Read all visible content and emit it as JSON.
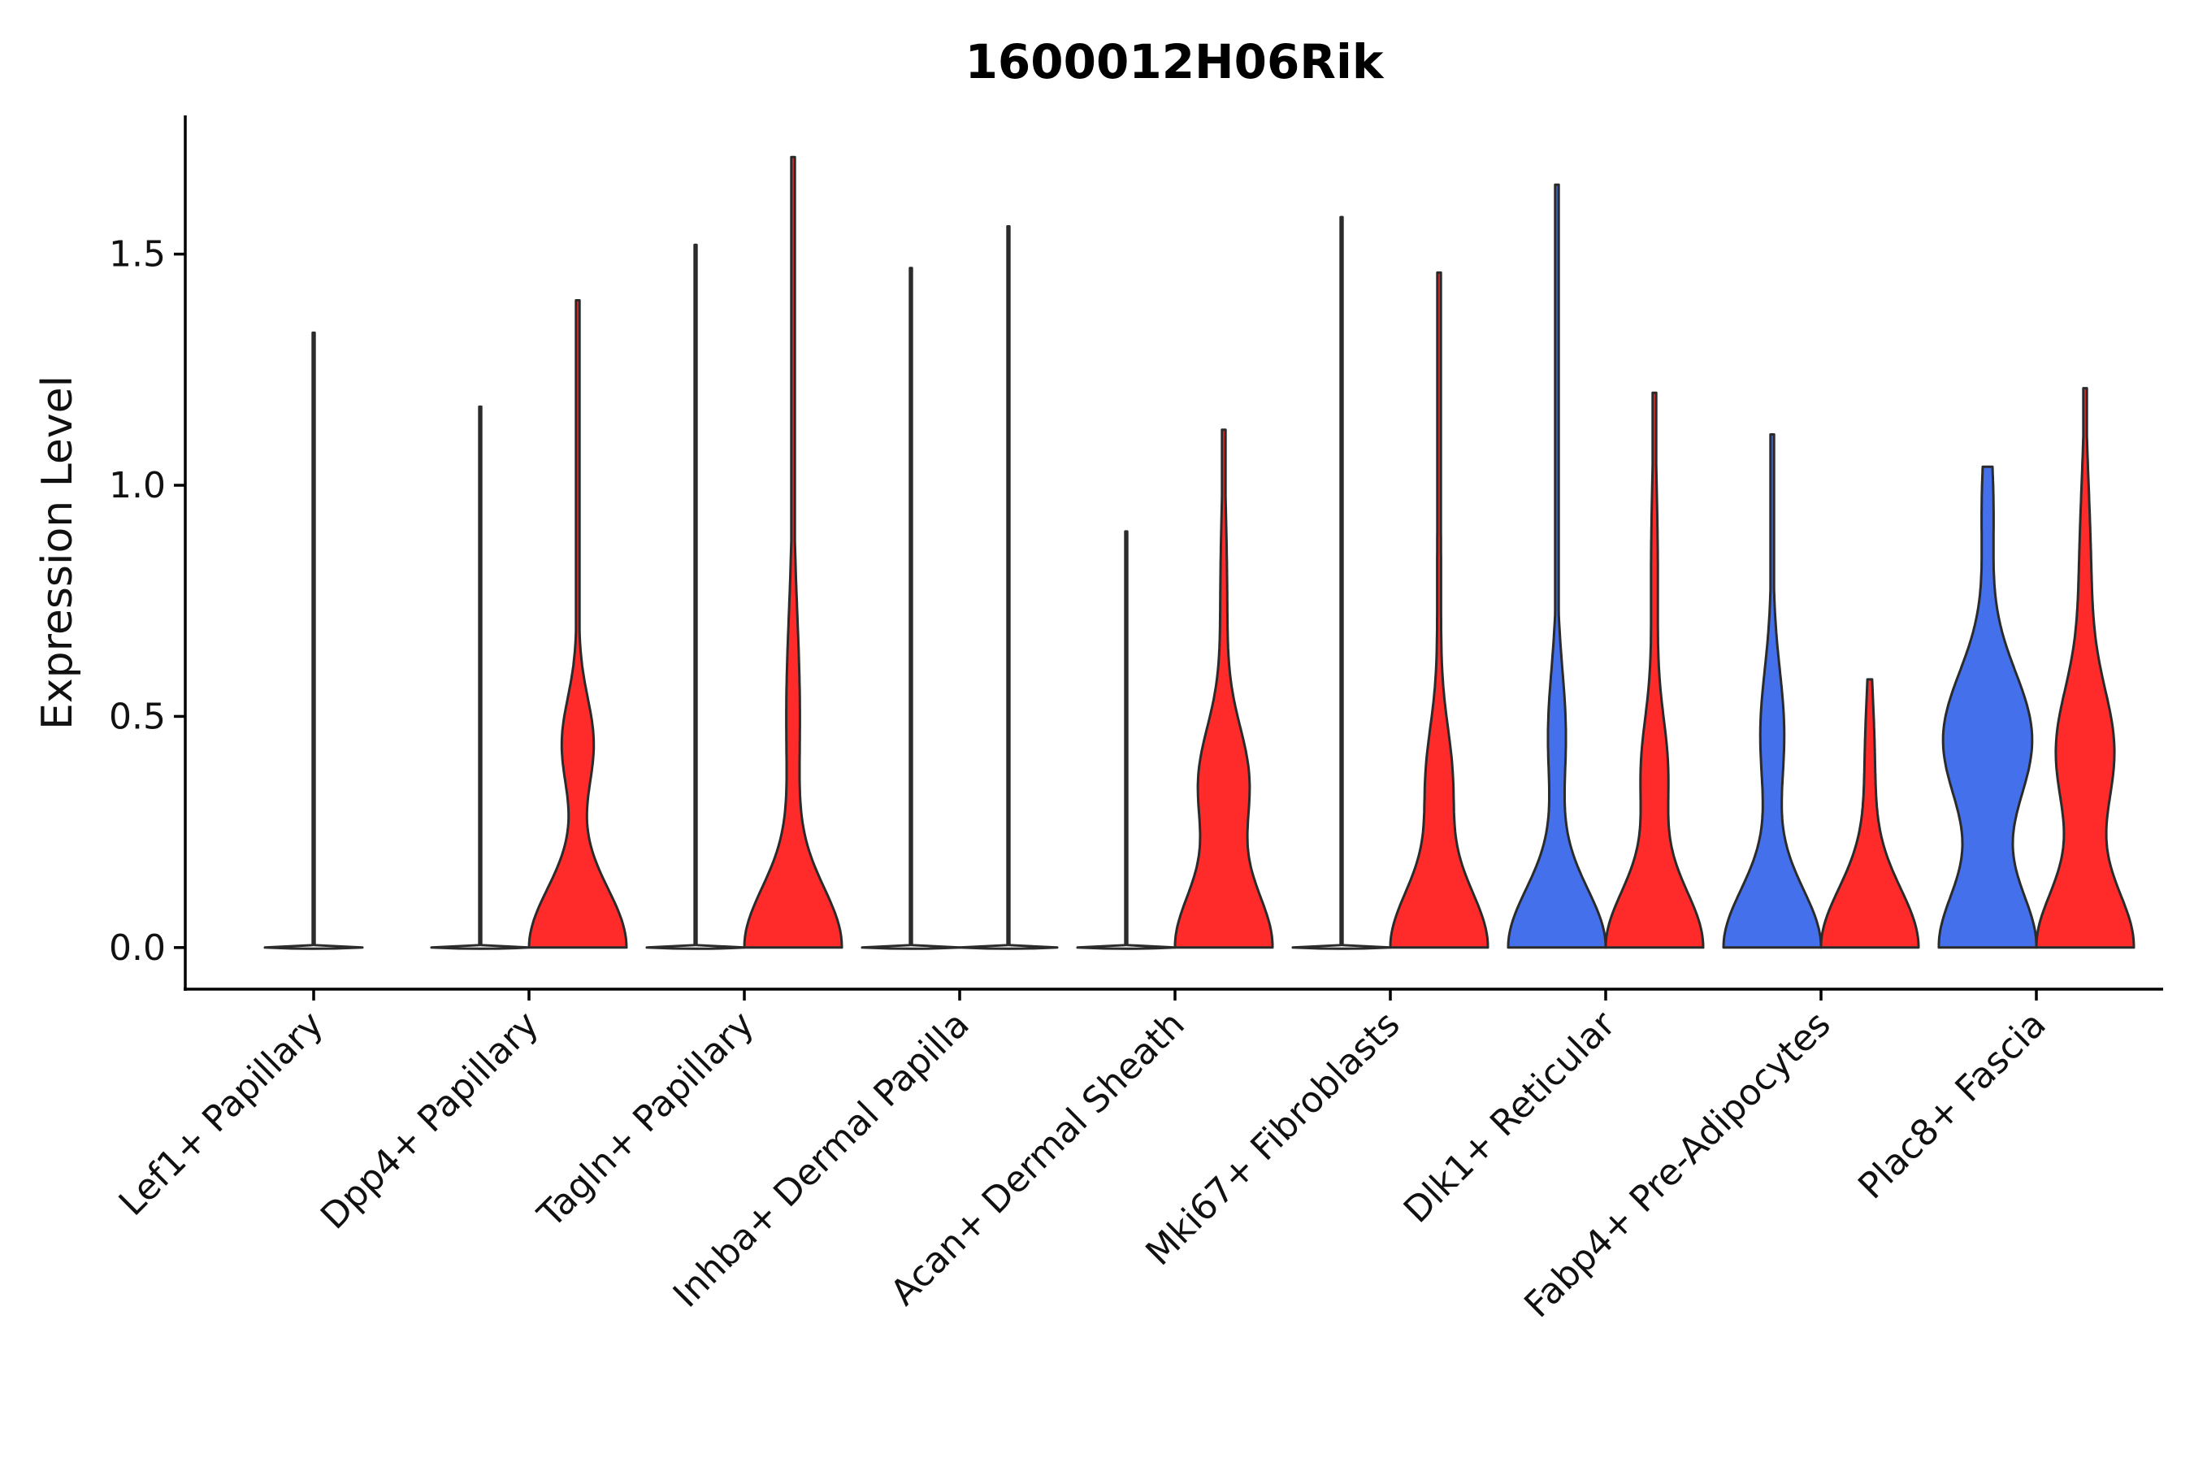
{
  "chart_data": {
    "type": "violin",
    "title": "1600012H06Rik",
    "xlabel": "",
    "ylabel": "Expression Level",
    "ylim": [
      -0.09,
      1.8
    ],
    "yticks": [
      0.0,
      0.5,
      1.0,
      1.5
    ],
    "ytick_labels": [
      "0.0",
      "0.5",
      "1.0",
      "1.5"
    ],
    "categories": [
      "Lef1+ Papillary",
      "Dpp4+ Papillary",
      "Tagln+ Papillary",
      "Inhba+ Dermal Papilla",
      "Acan+ Dermal Sheath",
      "Mki67+ Fibroblasts",
      "Dlk1+ Reticular",
      "Fabp4+ Pre-Adipocytes",
      "Plac8+ Fascia"
    ],
    "colors": {
      "blue": "#4470ec",
      "red": "#ff2b2b",
      "flat": "#ffffff"
    },
    "groups": [
      {
        "name": "Lef1+ Papillary",
        "violins": [
          {
            "color": "flat",
            "max": 1.33,
            "peaks": []
          }
        ]
      },
      {
        "name": "Dpp4+ Papillary",
        "violins": [
          {
            "color": "flat",
            "max": 1.17,
            "peaks": []
          },
          {
            "color": "red",
            "max": 1.4,
            "peaks": [
              [
                0.0,
                1.0,
                0.13
              ],
              [
                0.44,
                0.32,
                0.1
              ],
              [
                0.9,
                0.03,
                0.25
              ]
            ]
          }
        ]
      },
      {
        "name": "Tagln+ Papillary",
        "violins": [
          {
            "color": "flat",
            "max": 1.52,
            "peaks": []
          },
          {
            "color": "red",
            "max": 1.71,
            "peaks": [
              [
                0.0,
                1.0,
                0.13
              ],
              [
                0.5,
                0.14,
                0.22
              ],
              [
                1.2,
                0.01,
                0.3
              ]
            ]
          }
        ]
      },
      {
        "name": "Inhba+ Dermal Papilla",
        "violins": [
          {
            "color": "flat",
            "max": 1.47,
            "peaks": []
          },
          {
            "color": "flat",
            "max": 1.56,
            "peaks": []
          }
        ]
      },
      {
        "name": "Acan+ Dermal Sheath",
        "violins": [
          {
            "color": "flat",
            "max": 0.9,
            "peaks": []
          },
          {
            "color": "red",
            "max": 1.12,
            "peaks": [
              [
                0.0,
                1.0,
                0.13
              ],
              [
                0.36,
                0.5,
                0.12
              ],
              [
                0.75,
                0.07,
                0.2
              ]
            ]
          }
        ]
      },
      {
        "name": "Mki67+ Fibroblasts",
        "violins": [
          {
            "color": "flat",
            "max": 1.58,
            "peaks": []
          },
          {
            "color": "red",
            "max": 1.46,
            "peaks": [
              [
                0.0,
                1.0,
                0.13
              ],
              [
                0.36,
                0.26,
                0.12
              ],
              [
                0.8,
                0.04,
                0.25
              ]
            ]
          }
        ]
      },
      {
        "name": "Dlk1+ Reticular",
        "violins": [
          {
            "color": "blue",
            "max": 1.65,
            "peaks": [
              [
                0.0,
                1.0,
                0.13
              ],
              [
                0.46,
                0.18,
                0.14
              ],
              [
                1.0,
                0.01,
                0.3
              ]
            ]
          },
          {
            "color": "red",
            "max": 1.2,
            "peaks": [
              [
                0.0,
                1.0,
                0.13
              ],
              [
                0.38,
                0.26,
                0.12
              ],
              [
                0.8,
                0.07,
                0.22
              ]
            ]
          }
        ]
      },
      {
        "name": "Fabp4+ Pre-Adipocytes",
        "violins": [
          {
            "color": "blue",
            "max": 1.11,
            "peaks": [
              [
                0.0,
                1.0,
                0.13
              ],
              [
                0.46,
                0.24,
                0.14
              ],
              [
                0.9,
                0.02,
                0.25
              ]
            ]
          },
          {
            "color": "red",
            "max": 0.58,
            "peaks": [
              [
                0.0,
                1.0,
                0.13
              ],
              [
                0.4,
                0.1,
                0.15
              ]
            ]
          }
        ]
      },
      {
        "name": "Plac8+ Fascia",
        "violins": [
          {
            "color": "blue",
            "max": 1.04,
            "peaks": [
              [
                0.0,
                1.0,
                0.13
              ],
              [
                0.45,
                0.92,
                0.15
              ],
              [
                0.95,
                0.12,
                0.15
              ]
            ]
          },
          {
            "color": "red",
            "max": 1.21,
            "peaks": [
              [
                0.0,
                1.0,
                0.13
              ],
              [
                0.42,
                0.58,
                0.14
              ],
              [
                0.8,
                0.12,
                0.2
              ]
            ]
          }
        ]
      }
    ]
  }
}
